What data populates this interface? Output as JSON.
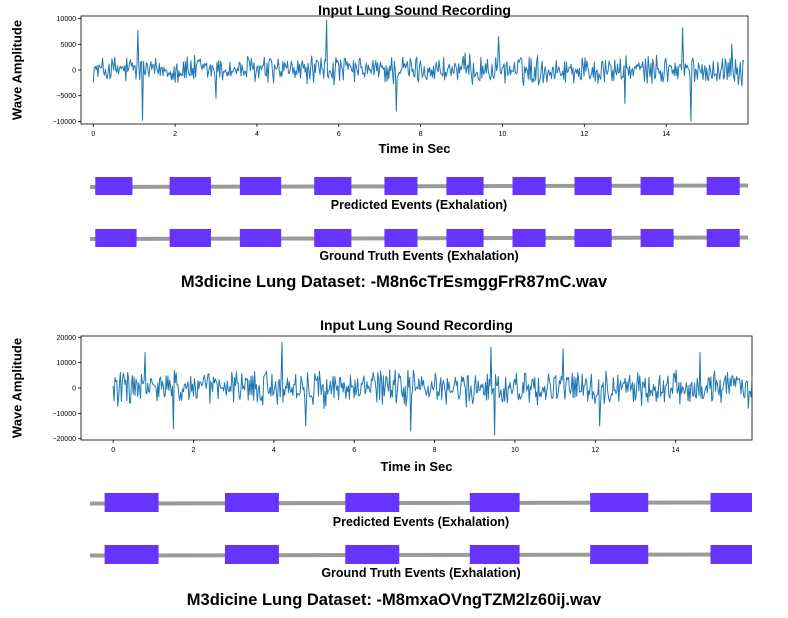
{
  "figure": {
    "panels": [
      {
        "caption": "M3dicine Lung Dataset: -M8n6cTrEsmggFrR87mC.wav",
        "bar_color": "#6633ff",
        "track_color": "#9a9a9a",
        "signal": {
          "title": "Input Lung Sound Recording",
          "xlabel": "Time in Sec",
          "ylabel": "Wave Amplitude",
          "line_color": "#1f77b4",
          "xlim": [
            -0.3,
            16.0
          ],
          "ylim": [
            -10500,
            10500
          ],
          "xticks": [
            0,
            2,
            4,
            6,
            8,
            10,
            12,
            14
          ],
          "yticks": [
            -10000,
            -5000,
            0,
            5000,
            10000
          ],
          "peaks": [
            [
              1.1,
              7700
            ],
            [
              1.2,
              -9800
            ],
            [
              5.7,
              9700
            ],
            [
              7.4,
              -8000
            ],
            [
              9.9,
              6500
            ],
            [
              13.0,
              -6500
            ],
            [
              14.4,
              8200
            ],
            [
              14.6,
              -10000
            ],
            [
              15.6,
              5000
            ],
            [
              3.0,
              -5500
            ]
          ]
        },
        "predicted": {
          "label": "Predicted Events (Exhalation)",
          "events": [
            [
              0.2,
              1.1
            ],
            [
              2.0,
              3.0
            ],
            [
              3.7,
              4.7
            ],
            [
              5.5,
              6.4
            ],
            [
              7.2,
              8.0
            ],
            [
              8.7,
              9.6
            ],
            [
              10.3,
              11.1
            ],
            [
              11.8,
              12.7
            ],
            [
              13.4,
              14.2
            ],
            [
              15.0,
              15.8
            ]
          ]
        },
        "ground_truth": {
          "label": "Ground Truth Events (Exhalation)",
          "events": [
            [
              0.2,
              1.2
            ],
            [
              2.0,
              3.0
            ],
            [
              3.7,
              4.7
            ],
            [
              5.5,
              6.4
            ],
            [
              7.2,
              8.0
            ],
            [
              8.7,
              9.6
            ],
            [
              10.3,
              11.1
            ],
            [
              11.8,
              12.7
            ],
            [
              13.4,
              14.2
            ],
            [
              15.0,
              15.8
            ]
          ]
        }
      },
      {
        "caption": "M3dicine Lung Dataset: -M8mxaOVngTZM2lz60ij.wav",
        "bar_color": "#6633ff",
        "track_color": "#9a9a9a",
        "signal": {
          "title": "Input Lung Sound Recording",
          "xlabel": "Time in Sec",
          "ylabel": "Wave Amplitude",
          "line_color": "#1f77b4",
          "xlim": [
            -0.8,
            15.9
          ],
          "ylim": [
            -20500,
            20500
          ],
          "xticks": [
            0,
            2,
            4,
            6,
            8,
            10,
            12,
            14
          ],
          "yticks": [
            -20000,
            -10000,
            0,
            10000,
            20000
          ],
          "peaks": [
            [
              0.8,
              14000
            ],
            [
              1.5,
              -16000
            ],
            [
              4.2,
              18000
            ],
            [
              4.8,
              -15000
            ],
            [
              7.4,
              -17000
            ],
            [
              9.5,
              -18500
            ],
            [
              9.4,
              16000
            ],
            [
              11.2,
              15500
            ],
            [
              12.1,
              -15000
            ],
            [
              14.6,
              14000
            ],
            [
              15.8,
              -8000
            ]
          ]
        },
        "predicted": {
          "label": "Predicted Events (Exhalation)",
          "events": [
            [
              0.4,
              1.7
            ],
            [
              3.3,
              4.6
            ],
            [
              6.2,
              7.5
            ],
            [
              9.2,
              10.4
            ],
            [
              12.1,
              13.5
            ],
            [
              15.0,
              16.0
            ]
          ]
        },
        "ground_truth": {
          "label": "Ground Truth Events (Exhalation)",
          "events": [
            [
              0.4,
              1.7
            ],
            [
              3.3,
              4.6
            ],
            [
              6.2,
              7.5
            ],
            [
              9.2,
              10.4
            ],
            [
              12.1,
              13.5
            ],
            [
              15.0,
              16.0
            ]
          ]
        }
      }
    ]
  },
  "chart_data": [
    {
      "type": "line",
      "title": "Input Lung Sound Recording",
      "xlabel": "Time in Sec",
      "ylabel": "Wave Amplitude",
      "xlim": [
        -0.3,
        16.0
      ],
      "ylim": [
        -10500,
        10500
      ],
      "series": [
        {
          "values": "dense waveform, ~16 s, amplitude mostly within ±5000, peaks near +9700 (5.7 s) and -10000 (1.2 s, 14.6 s)"
        }
      ]
    },
    {
      "type": "line",
      "title": "Input Lung Sound Recording",
      "xlabel": "Time in Sec",
      "ylabel": "Wave Amplitude",
      "xlim": [
        -0.8,
        15.9
      ],
      "ylim": [
        -20500,
        20500
      ],
      "series": [
        {
          "values": "dense waveform, ~16 s, amplitude mostly within ±10000, peaks near +18000 (4.2 s) and -18500 (9.5 s)"
        }
      ]
    }
  ]
}
